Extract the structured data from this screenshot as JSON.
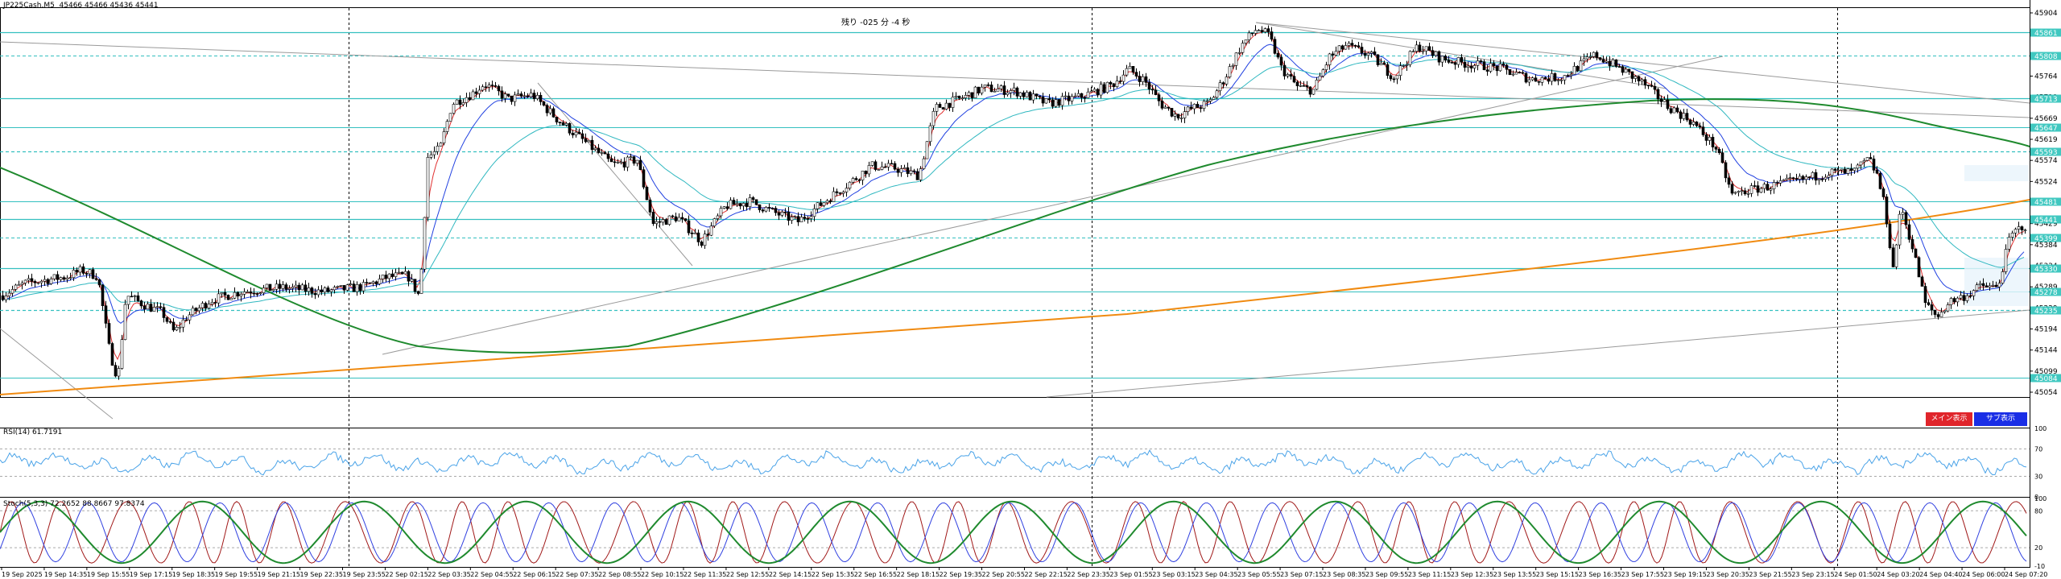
{
  "window": {
    "symbol_line": "JP225Cash,M5  45466 45466 45436 45441",
    "remaining_label": "残り -025 分 -4 秒"
  },
  "buttons": {
    "main_label": "メイン表示",
    "sub_label": "サブ表示"
  },
  "price_axis": {
    "ticks": [
      "45904",
      "45854",
      "45809",
      "45764",
      "45719",
      "45669",
      "45619",
      "45574",
      "45524",
      "45479",
      "45429",
      "45384",
      "45334",
      "45289",
      "45239",
      "45194",
      "45144",
      "45099",
      "45054"
    ],
    "highlighted_levels": [
      {
        "price": 45861,
        "label": "45861"
      },
      {
        "price": 45808,
        "label": "45808"
      },
      {
        "price": 45713,
        "label": "45713"
      },
      {
        "price": 45647,
        "label": "45647"
      },
      {
        "price": 45593,
        "label": "45593"
      },
      {
        "price": 45481,
        "label": "45481"
      },
      {
        "price": 45441,
        "label": "45441"
      },
      {
        "price": 45399,
        "label": "45399"
      },
      {
        "price": 45330,
        "label": "45330"
      },
      {
        "price": 45278,
        "label": "45278"
      },
      {
        "price": 45235,
        "label": "45235"
      },
      {
        "price": 45084,
        "label": "45084"
      }
    ],
    "colors": {
      "level_line": "#34c0c0",
      "label_bg": "#40c8c0"
    }
  },
  "time_axis": {
    "labels": [
      "19 Sep 2025",
      "19 Sep 14:35",
      "19 Sep 15:55",
      "19 Sep 17:15",
      "19 Sep 18:35",
      "19 Sep 19:55",
      "19 Sep 21:15",
      "19 Sep 22:35",
      "19 Sep 23:55",
      "22 Sep 02:15",
      "22 Sep 03:35",
      "22 Sep 04:55",
      "22 Sep 06:15",
      "22 Sep 07:35",
      "22 Sep 08:55",
      "22 Sep 10:15",
      "22 Sep 11:35",
      "22 Sep 12:55",
      "22 Sep 14:15",
      "22 Sep 15:35",
      "22 Sep 16:55",
      "22 Sep 18:15",
      "22 Sep 19:35",
      "22 Sep 20:55",
      "22 Sep 22:15",
      "22 Sep 23:35",
      "23 Sep 01:55",
      "23 Sep 03:15",
      "23 Sep 04:35",
      "23 Sep 05:55",
      "23 Sep 07:15",
      "23 Sep 08:35",
      "23 Sep 09:55",
      "23 Sep 11:15",
      "23 Sep 12:35",
      "23 Sep 13:55",
      "23 Sep 15:15",
      "23 Sep 16:35",
      "23 Sep 17:55",
      "23 Sep 19:15",
      "23 Sep 20:35",
      "23 Sep 21:55",
      "23 Sep 23:15",
      "24 Sep 01:50",
      "24 Sep 03:20",
      "24 Sep 04:40",
      "24 Sep 06:00",
      "24 Sep 07:20"
    ]
  },
  "rsi": {
    "title": "RSI(14) 61.7191",
    "scale": [
      "100",
      "70",
      "30",
      "0"
    ],
    "current_value": 61.7191
  },
  "stoch": {
    "title": "Stoch(5,3,3) 72.2652 88.8667 97.8374",
    "scale": [
      "100",
      "80",
      "20",
      "-10"
    ]
  },
  "chart_data": {
    "type": "candlestick",
    "ylim": [
      45040,
      45915
    ],
    "series": [
      {
        "name": "price",
        "color": "#000000"
      },
      {
        "name": "fast-ma",
        "color": "#e03030"
      },
      {
        "name": "mid-ma",
        "color": "#2040e0"
      },
      {
        "name": "slow-ma",
        "color": "#30b8c0"
      },
      {
        "name": "ma-200",
        "color": "#1f8a2e"
      },
      {
        "name": "ma-long",
        "color": "#f08a10"
      }
    ],
    "price_path": [
      [
        0,
        45268
      ],
      [
        30,
        45296
      ],
      [
        60,
        45305
      ],
      [
        80,
        45310
      ],
      [
        100,
        45325
      ],
      [
        120,
        45312
      ],
      [
        135,
        45140
      ],
      [
        145,
        45080
      ],
      [
        155,
        45270
      ],
      [
        175,
        45250
      ],
      [
        200,
        45230
      ],
      [
        215,
        45185
      ],
      [
        230,
        45220
      ],
      [
        260,
        45258
      ],
      [
        300,
        45278
      ],
      [
        350,
        45286
      ],
      [
        400,
        45277
      ],
      [
        450,
        45288
      ],
      [
        480,
        45310
      ],
      [
        505,
        45313
      ],
      [
        520,
        45265
      ],
      [
        530,
        45580
      ],
      [
        545,
        45598
      ],
      [
        560,
        45700
      ],
      [
        585,
        45722
      ],
      [
        600,
        45745
      ],
      [
        630,
        45710
      ],
      [
        660,
        45720
      ],
      [
        690,
        45666
      ],
      [
        710,
        45636
      ],
      [
        740,
        45592
      ],
      [
        760,
        45562
      ],
      [
        790,
        45574
      ],
      [
        810,
        45430
      ],
      [
        840,
        45445
      ],
      [
        870,
        45390
      ],
      [
        900,
        45470
      ],
      [
        930,
        45480
      ],
      [
        960,
        45455
      ],
      [
        990,
        45435
      ],
      [
        1030,
        45490
      ],
      [
        1060,
        45530
      ],
      [
        1080,
        45560
      ],
      [
        1110,
        45555
      ],
      [
        1140,
        45538
      ],
      [
        1160,
        45690
      ],
      [
        1190,
        45710
      ],
      [
        1220,
        45735
      ],
      [
        1260,
        45728
      ],
      [
        1300,
        45700
      ],
      [
        1340,
        45715
      ],
      [
        1380,
        45742
      ],
      [
        1400,
        45778
      ],
      [
        1420,
        45752
      ],
      [
        1440,
        45700
      ],
      [
        1460,
        45672
      ],
      [
        1480,
        45690
      ],
      [
        1500,
        45700
      ],
      [
        1520,
        45758
      ],
      [
        1540,
        45830
      ],
      [
        1560,
        45870
      ],
      [
        1575,
        45852
      ],
      [
        1590,
        45780
      ],
      [
        1610,
        45738
      ],
      [
        1630,
        45730
      ],
      [
        1650,
        45805
      ],
      [
        1670,
        45830
      ],
      [
        1700,
        45810
      ],
      [
        1730,
        45760
      ],
      [
        1760,
        45830
      ],
      [
        1790,
        45800
      ],
      [
        1820,
        45790
      ],
      [
        1860,
        45780
      ],
      [
        1900,
        45755
      ],
      [
        1940,
        45760
      ],
      [
        1980,
        45810
      ],
      [
        2010,
        45780
      ],
      [
        2040,
        45745
      ],
      [
        2070,
        45695
      ],
      [
        2100,
        45660
      ],
      [
        2130,
        45600
      ],
      [
        2150,
        45495
      ],
      [
        2170,
        45505
      ],
      [
        2200,
        45515
      ],
      [
        2240,
        45530
      ],
      [
        2270,
        45545
      ],
      [
        2300,
        45545
      ],
      [
        2320,
        45575
      ],
      [
        2330,
        45540
      ],
      [
        2340,
        45465
      ],
      [
        2350,
        45330
      ],
      [
        2360,
        45470
      ],
      [
        2375,
        45370
      ],
      [
        2390,
        45250
      ],
      [
        2405,
        45220
      ],
      [
        2420,
        45255
      ],
      [
        2440,
        45268
      ],
      [
        2460,
        45290
      ],
      [
        2480,
        45285
      ],
      [
        2495,
        45400
      ],
      [
        2510,
        45425
      ],
      [
        2525,
        45420
      ],
      [
        2540,
        45480
      ],
      [
        2555,
        45470
      ]
    ]
  }
}
